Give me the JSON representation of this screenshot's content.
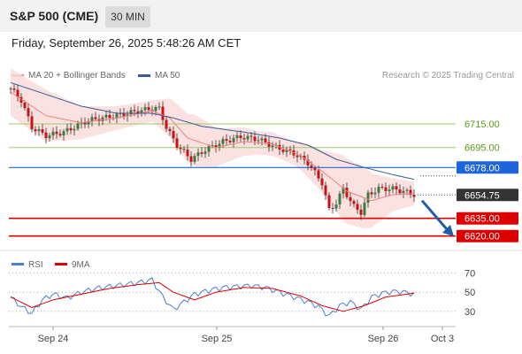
{
  "header": {
    "title": "S&P 500 (CME)",
    "timeframe": "30 MIN"
  },
  "datetime": "Friday, September 26, 2025 5:48:26 AM CET",
  "legend": {
    "ma20": {
      "label": "MA 20 + Bollinger Bands",
      "color": "#f08080"
    },
    "ma50": {
      "label": "MA 50",
      "color": "#335c99"
    }
  },
  "credit": "Research © 2025 Trading Central",
  "colors": {
    "up": "#3a7a3a",
    "down": "#cc1111",
    "resistance": "#9acd6a",
    "pivot": "#1e64dc",
    "support": "#dd0000",
    "last": "#333333",
    "band": "#fbdcdc"
  },
  "chart_data": [
    {
      "type": "candlestick",
      "title": "S&P 500 (CME)",
      "timeframe": "30 MIN",
      "x_ticks": [
        "Sep 24",
        "Sep 25",
        "Sep 26",
        "Oct 3"
      ],
      "ylim": [
        6610,
        6760
      ],
      "last_price": 6654.75,
      "levels": [
        {
          "value": 6715.0,
          "label": "6715.00",
          "kind": "resistance"
        },
        {
          "value": 6695.0,
          "label": "6695.00",
          "kind": "resistance"
        },
        {
          "value": 6678.0,
          "label": "6678.00",
          "kind": "pivot"
        },
        {
          "value": 6654.75,
          "label": "6654.75",
          "kind": "last"
        },
        {
          "value": 6635.0,
          "label": "6635.00",
          "kind": "support"
        },
        {
          "value": 6620.0,
          "label": "6620.00",
          "kind": "support"
        }
      ],
      "forecast": {
        "from": 6650,
        "to": 6622,
        "direction": "down"
      },
      "close_anchors": [
        [
          0,
          6745
        ],
        [
          3,
          6735
        ],
        [
          6,
          6712
        ],
        [
          10,
          6705
        ],
        [
          15,
          6708
        ],
        [
          22,
          6718
        ],
        [
          30,
          6722
        ],
        [
          36,
          6726
        ],
        [
          40,
          6728
        ],
        [
          42,
          6728
        ],
        [
          44,
          6712
        ],
        [
          47,
          6697
        ],
        [
          51,
          6685
        ],
        [
          55,
          6693
        ],
        [
          60,
          6700
        ],
        [
          65,
          6704
        ],
        [
          70,
          6702
        ],
        [
          75,
          6695
        ],
        [
          80,
          6690
        ],
        [
          84,
          6682
        ],
        [
          88,
          6665
        ],
        [
          90,
          6642
        ],
        [
          92,
          6648
        ],
        [
          94,
          6660
        ],
        [
          97,
          6645
        ],
        [
          99,
          6640
        ],
        [
          101,
          6655
        ],
        [
          104,
          6660
        ],
        [
          108,
          6660
        ],
        [
          112,
          6657
        ],
        [
          114,
          6655
        ]
      ],
      "ma20_anchors": [
        [
          0,
          6742
        ],
        [
          10,
          6722
        ],
        [
          20,
          6716
        ],
        [
          30,
          6720
        ],
        [
          40,
          6726
        ],
        [
          45,
          6720
        ],
        [
          50,
          6703
        ],
        [
          58,
          6695
        ],
        [
          66,
          6700
        ],
        [
          74,
          6698
        ],
        [
          82,
          6688
        ],
        [
          88,
          6675
        ],
        [
          95,
          6658
        ],
        [
          102,
          6650
        ],
        [
          108,
          6655
        ],
        [
          114,
          6656
        ]
      ],
      "ma50_anchors": [
        [
          0,
          6750
        ],
        [
          10,
          6740
        ],
        [
          20,
          6730
        ],
        [
          30,
          6724
        ],
        [
          40,
          6724
        ],
        [
          46,
          6720
        ],
        [
          54,
          6713
        ],
        [
          66,
          6708
        ],
        [
          76,
          6703
        ],
        [
          84,
          6697
        ],
        [
          92,
          6685
        ],
        [
          100,
          6678
        ],
        [
          108,
          6672
        ],
        [
          114,
          6668
        ]
      ],
      "band_width_anchors": [
        [
          0,
          20
        ],
        [
          10,
          22
        ],
        [
          20,
          14
        ],
        [
          30,
          10
        ],
        [
          40,
          9
        ],
        [
          46,
          18
        ],
        [
          52,
          22
        ],
        [
          60,
          15
        ],
        [
          70,
          10
        ],
        [
          80,
          10
        ],
        [
          88,
          18
        ],
        [
          94,
          28
        ],
        [
          100,
          26
        ],
        [
          108,
          14
        ],
        [
          114,
          10
        ]
      ]
    },
    {
      "type": "line",
      "title": "RSI",
      "series": [
        {
          "name": "RSI",
          "color": "#4a7fd6"
        },
        {
          "name": "9MA",
          "color": "#dd0000"
        }
      ],
      "ylim": [
        15,
        78
      ],
      "y_ticks": [
        70,
        50,
        30
      ],
      "rsi_anchors": [
        [
          0,
          45
        ],
        [
          3,
          35
        ],
        [
          6,
          28
        ],
        [
          9,
          42
        ],
        [
          12,
          48
        ],
        [
          16,
          44
        ],
        [
          20,
          50
        ],
        [
          24,
          54
        ],
        [
          28,
          56
        ],
        [
          32,
          58
        ],
        [
          36,
          60
        ],
        [
          40,
          63
        ],
        [
          43,
          45
        ],
        [
          46,
          32
        ],
        [
          49,
          40
        ],
        [
          52,
          48
        ],
        [
          56,
          52
        ],
        [
          60,
          55
        ],
        [
          64,
          56
        ],
        [
          68,
          57
        ],
        [
          72,
          55
        ],
        [
          76,
          50
        ],
        [
          80,
          45
        ],
        [
          84,
          40
        ],
        [
          87,
          35
        ],
        [
          90,
          25
        ],
        [
          93,
          36
        ],
        [
          96,
          40
        ],
        [
          99,
          32
        ],
        [
          102,
          45
        ],
        [
          106,
          50
        ],
        [
          110,
          51
        ],
        [
          114,
          48
        ]
      ],
      "ma9_anchors": [
        [
          0,
          45
        ],
        [
          6,
          34
        ],
        [
          12,
          42
        ],
        [
          20,
          48
        ],
        [
          28,
          54
        ],
        [
          36,
          58
        ],
        [
          42,
          60
        ],
        [
          46,
          50
        ],
        [
          52,
          42
        ],
        [
          58,
          50
        ],
        [
          66,
          55
        ],
        [
          74,
          54
        ],
        [
          82,
          46
        ],
        [
          88,
          36
        ],
        [
          94,
          30
        ],
        [
          100,
          36
        ],
        [
          106,
          45
        ],
        [
          114,
          49
        ]
      ]
    }
  ]
}
